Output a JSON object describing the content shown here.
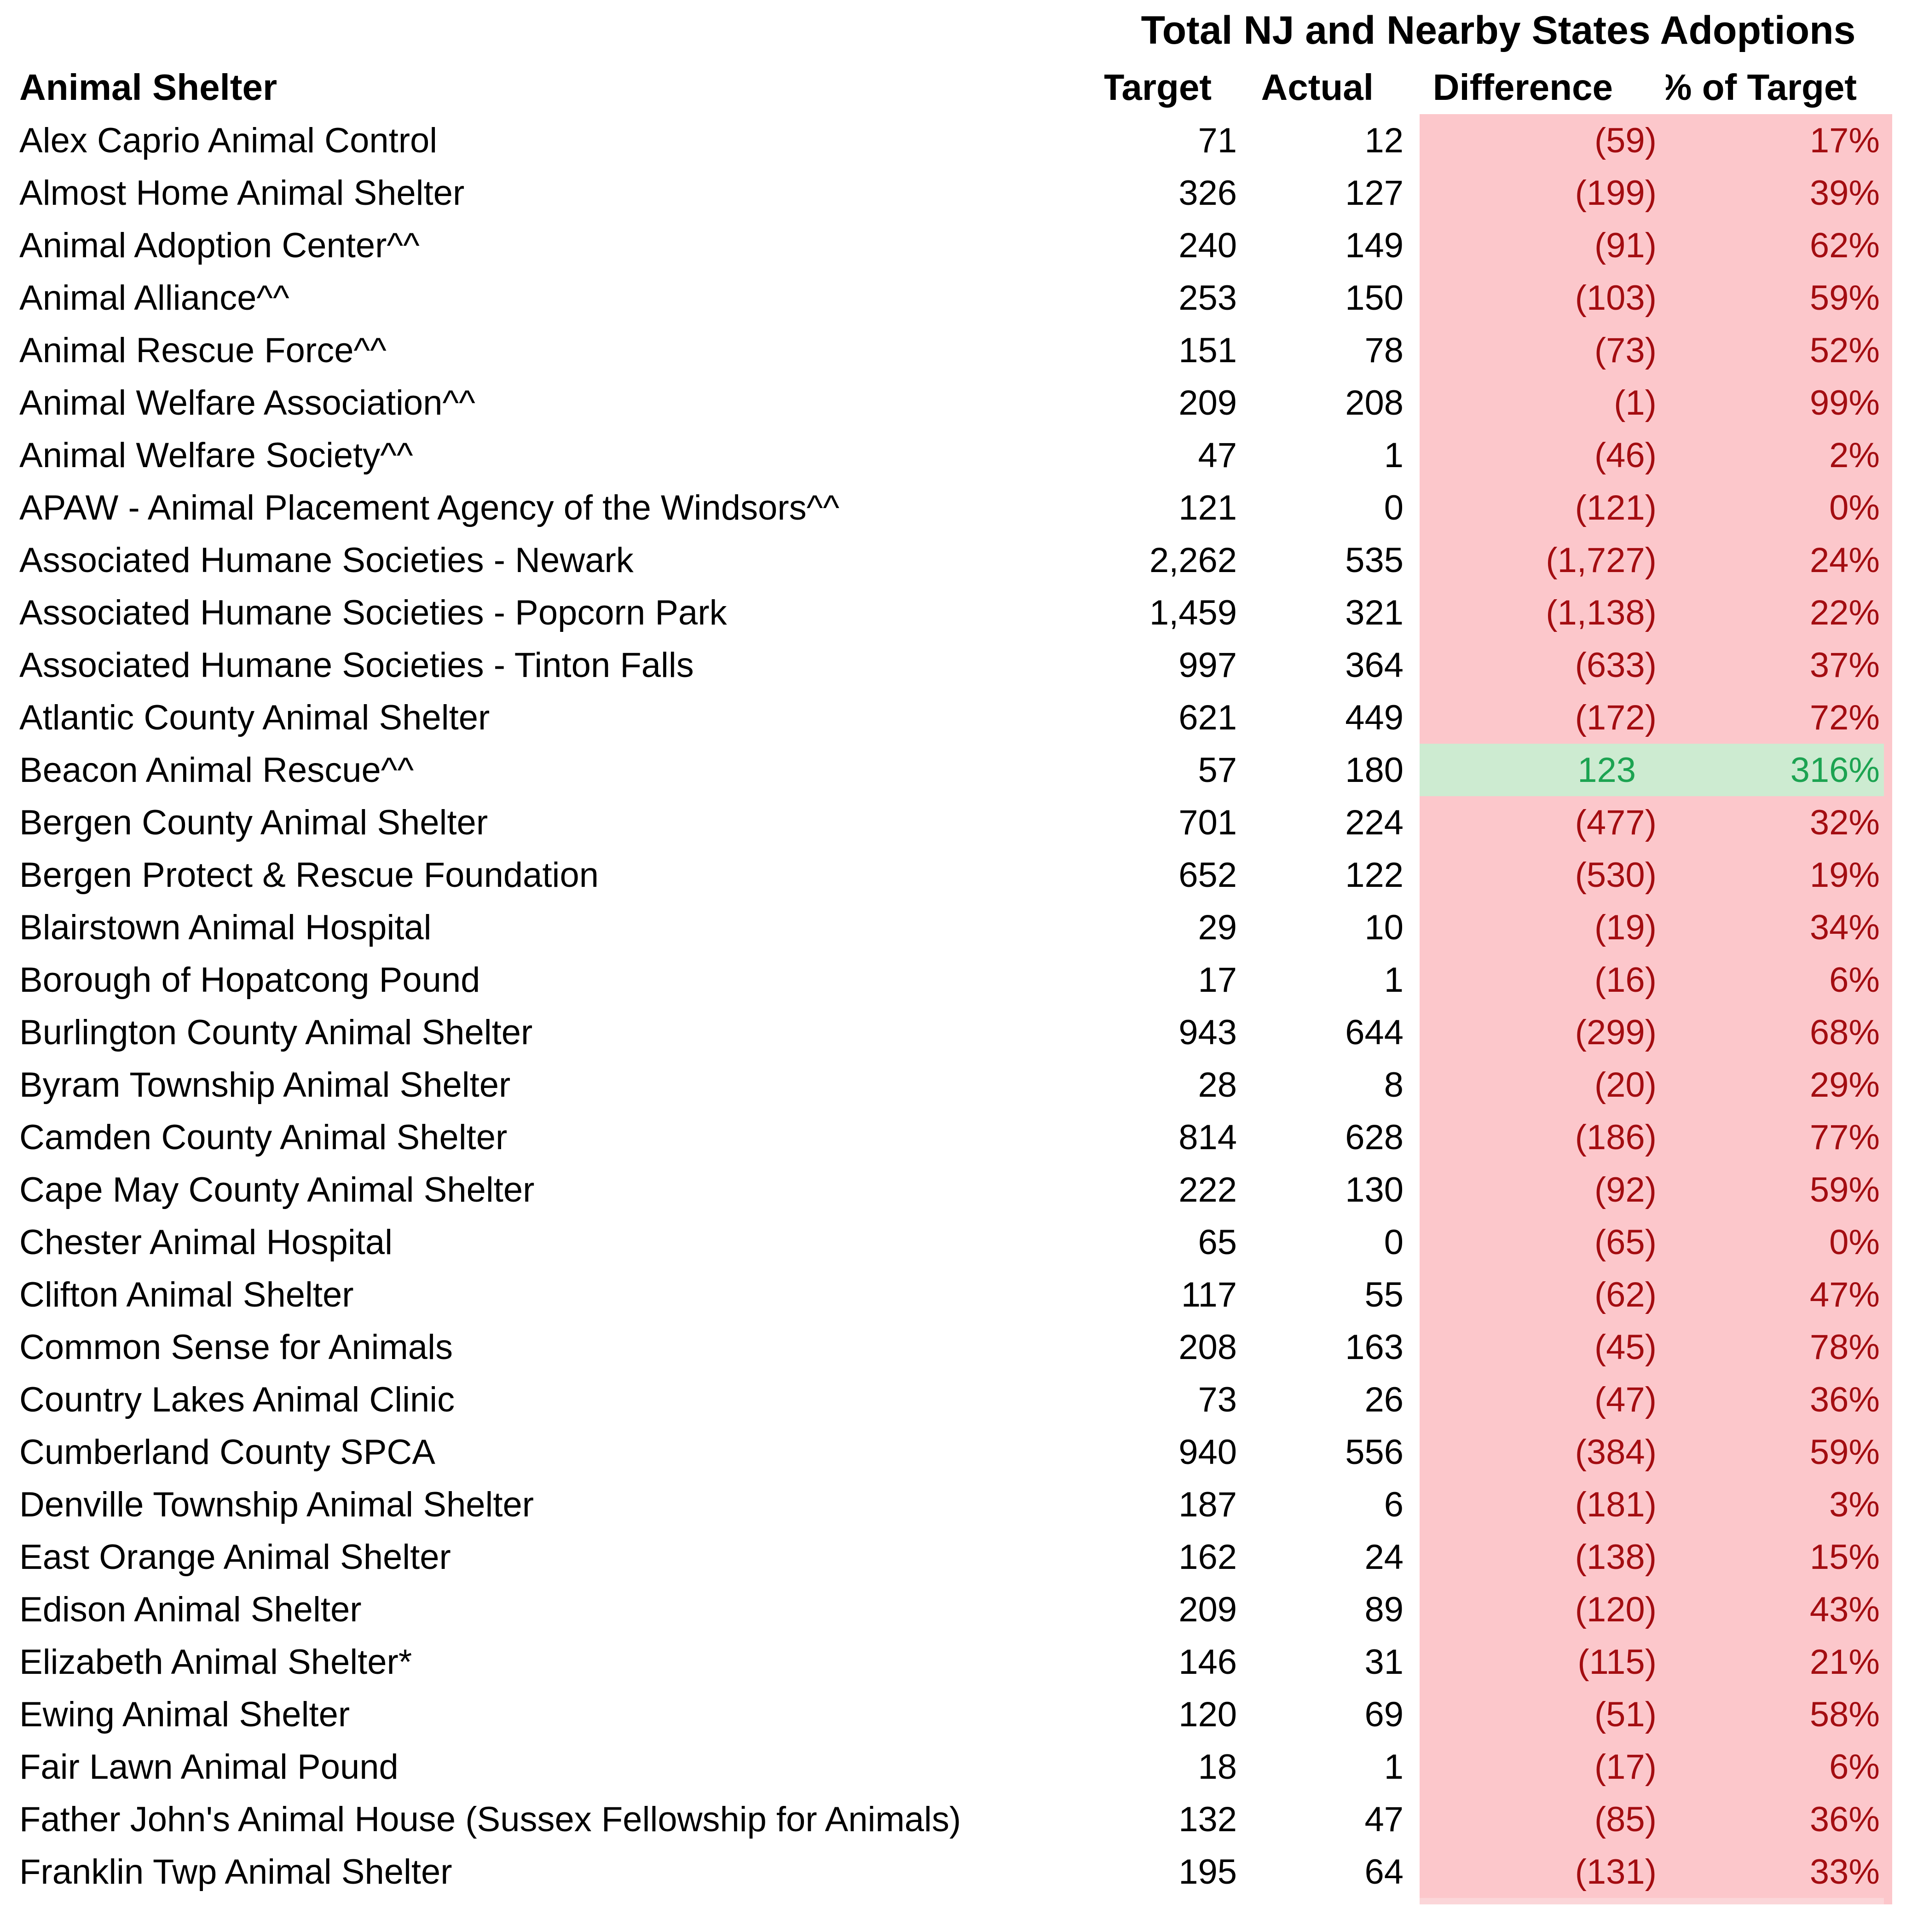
{
  "table": {
    "group_header": "Total NJ and Nearby States Adoptions",
    "columns": {
      "name": "Animal Shelter",
      "target": "Target",
      "actual": "Actual",
      "difference": "Difference",
      "pct": "% of Target"
    },
    "rows": [
      {
        "name": "Alex Caprio Animal Control",
        "target": "71",
        "actual": "12",
        "difference": "(59)",
        "pct": "17%",
        "status": "negative"
      },
      {
        "name": "Almost Home Animal Shelter",
        "target": "326",
        "actual": "127",
        "difference": "(199)",
        "pct": "39%",
        "status": "negative"
      },
      {
        "name": "Animal Adoption Center^^",
        "target": "240",
        "actual": "149",
        "difference": "(91)",
        "pct": "62%",
        "status": "negative"
      },
      {
        "name": "Animal Alliance^^",
        "target": "253",
        "actual": "150",
        "difference": "(103)",
        "pct": "59%",
        "status": "negative"
      },
      {
        "name": "Animal Rescue Force^^",
        "target": "151",
        "actual": "78",
        "difference": "(73)",
        "pct": "52%",
        "status": "negative"
      },
      {
        "name": "Animal Welfare Association^^",
        "target": "209",
        "actual": "208",
        "difference": "(1)",
        "pct": "99%",
        "status": "negative"
      },
      {
        "name": "Animal Welfare Society^^",
        "target": "47",
        "actual": "1",
        "difference": "(46)",
        "pct": "2%",
        "status": "negative"
      },
      {
        "name": "APAW - Animal Placement Agency of the Windsors^^",
        "target": "121",
        "actual": "0",
        "difference": "(121)",
        "pct": "0%",
        "status": "negative"
      },
      {
        "name": "Associated Humane Societies - Newark",
        "target": "2,262",
        "actual": "535",
        "difference": "(1,727)",
        "pct": "24%",
        "status": "negative"
      },
      {
        "name": "Associated Humane Societies - Popcorn Park",
        "target": "1,459",
        "actual": "321",
        "difference": "(1,138)",
        "pct": "22%",
        "status": "negative"
      },
      {
        "name": "Associated Humane Societies - Tinton Falls",
        "target": "997",
        "actual": "364",
        "difference": "(633)",
        "pct": "37%",
        "status": "negative"
      },
      {
        "name": "Atlantic County Animal Shelter",
        "target": "621",
        "actual": "449",
        "difference": "(172)",
        "pct": "72%",
        "status": "negative"
      },
      {
        "name": "Beacon Animal Rescue^^",
        "target": "57",
        "actual": "180",
        "difference": "123",
        "pct": "316%",
        "status": "positive"
      },
      {
        "name": "Bergen County Animal Shelter",
        "target": "701",
        "actual": "224",
        "difference": "(477)",
        "pct": "32%",
        "status": "negative"
      },
      {
        "name": "Bergen Protect & Rescue Foundation",
        "target": "652",
        "actual": "122",
        "difference": "(530)",
        "pct": "19%",
        "status": "negative"
      },
      {
        "name": "Blairstown Animal Hospital",
        "target": "29",
        "actual": "10",
        "difference": "(19)",
        "pct": "34%",
        "status": "negative"
      },
      {
        "name": "Borough of Hopatcong Pound",
        "target": "17",
        "actual": "1",
        "difference": "(16)",
        "pct": "6%",
        "status": "negative"
      },
      {
        "name": "Burlington County Animal Shelter",
        "target": "943",
        "actual": "644",
        "difference": "(299)",
        "pct": "68%",
        "status": "negative"
      },
      {
        "name": "Byram Township Animal Shelter",
        "target": "28",
        "actual": "8",
        "difference": "(20)",
        "pct": "29%",
        "status": "negative"
      },
      {
        "name": "Camden County Animal Shelter",
        "target": "814",
        "actual": "628",
        "difference": "(186)",
        "pct": "77%",
        "status": "negative"
      },
      {
        "name": "Cape May County Animal Shelter",
        "target": "222",
        "actual": "130",
        "difference": "(92)",
        "pct": "59%",
        "status": "negative"
      },
      {
        "name": "Chester Animal Hospital",
        "target": "65",
        "actual": "0",
        "difference": "(65)",
        "pct": "0%",
        "status": "negative"
      },
      {
        "name": "Clifton Animal Shelter",
        "target": "117",
        "actual": "55",
        "difference": "(62)",
        "pct": "47%",
        "status": "negative"
      },
      {
        "name": "Common Sense for Animals",
        "target": "208",
        "actual": "163",
        "difference": "(45)",
        "pct": "78%",
        "status": "negative"
      },
      {
        "name": "Country Lakes Animal Clinic",
        "target": "73",
        "actual": "26",
        "difference": "(47)",
        "pct": "36%",
        "status": "negative"
      },
      {
        "name": "Cumberland County SPCA",
        "target": "940",
        "actual": "556",
        "difference": "(384)",
        "pct": "59%",
        "status": "negative"
      },
      {
        "name": "Denville Township Animal Shelter",
        "target": "187",
        "actual": "6",
        "difference": "(181)",
        "pct": "3%",
        "status": "negative"
      },
      {
        "name": "East Orange Animal Shelter",
        "target": "162",
        "actual": "24",
        "difference": "(138)",
        "pct": "15%",
        "status": "negative"
      },
      {
        "name": "Edison Animal Shelter",
        "target": "209",
        "actual": "89",
        "difference": "(120)",
        "pct": "43%",
        "status": "negative"
      },
      {
        "name": "Elizabeth Animal Shelter*",
        "target": "146",
        "actual": "31",
        "difference": "(115)",
        "pct": "21%",
        "status": "negative"
      },
      {
        "name": "Ewing Animal Shelter",
        "target": "120",
        "actual": "69",
        "difference": "(51)",
        "pct": "58%",
        "status": "negative"
      },
      {
        "name": "Fair Lawn Animal Pound",
        "target": "18",
        "actual": "1",
        "difference": "(17)",
        "pct": "6%",
        "status": "negative"
      },
      {
        "name": "Father John's Animal House (Sussex Fellowship for Animals)",
        "target": "132",
        "actual": "47",
        "difference": "(85)",
        "pct": "36%",
        "status": "negative"
      },
      {
        "name": "Franklin Twp Animal Shelter",
        "target": "195",
        "actual": "64",
        "difference": "(131)",
        "pct": "33%",
        "status": "negative"
      }
    ]
  },
  "colors": {
    "negative_bg": "#FCC7CB",
    "negative_text": "#A30D11",
    "positive_bg": "#CDEBD1",
    "positive_text": "#1CA351",
    "band_edge": "#FBD6D9"
  }
}
